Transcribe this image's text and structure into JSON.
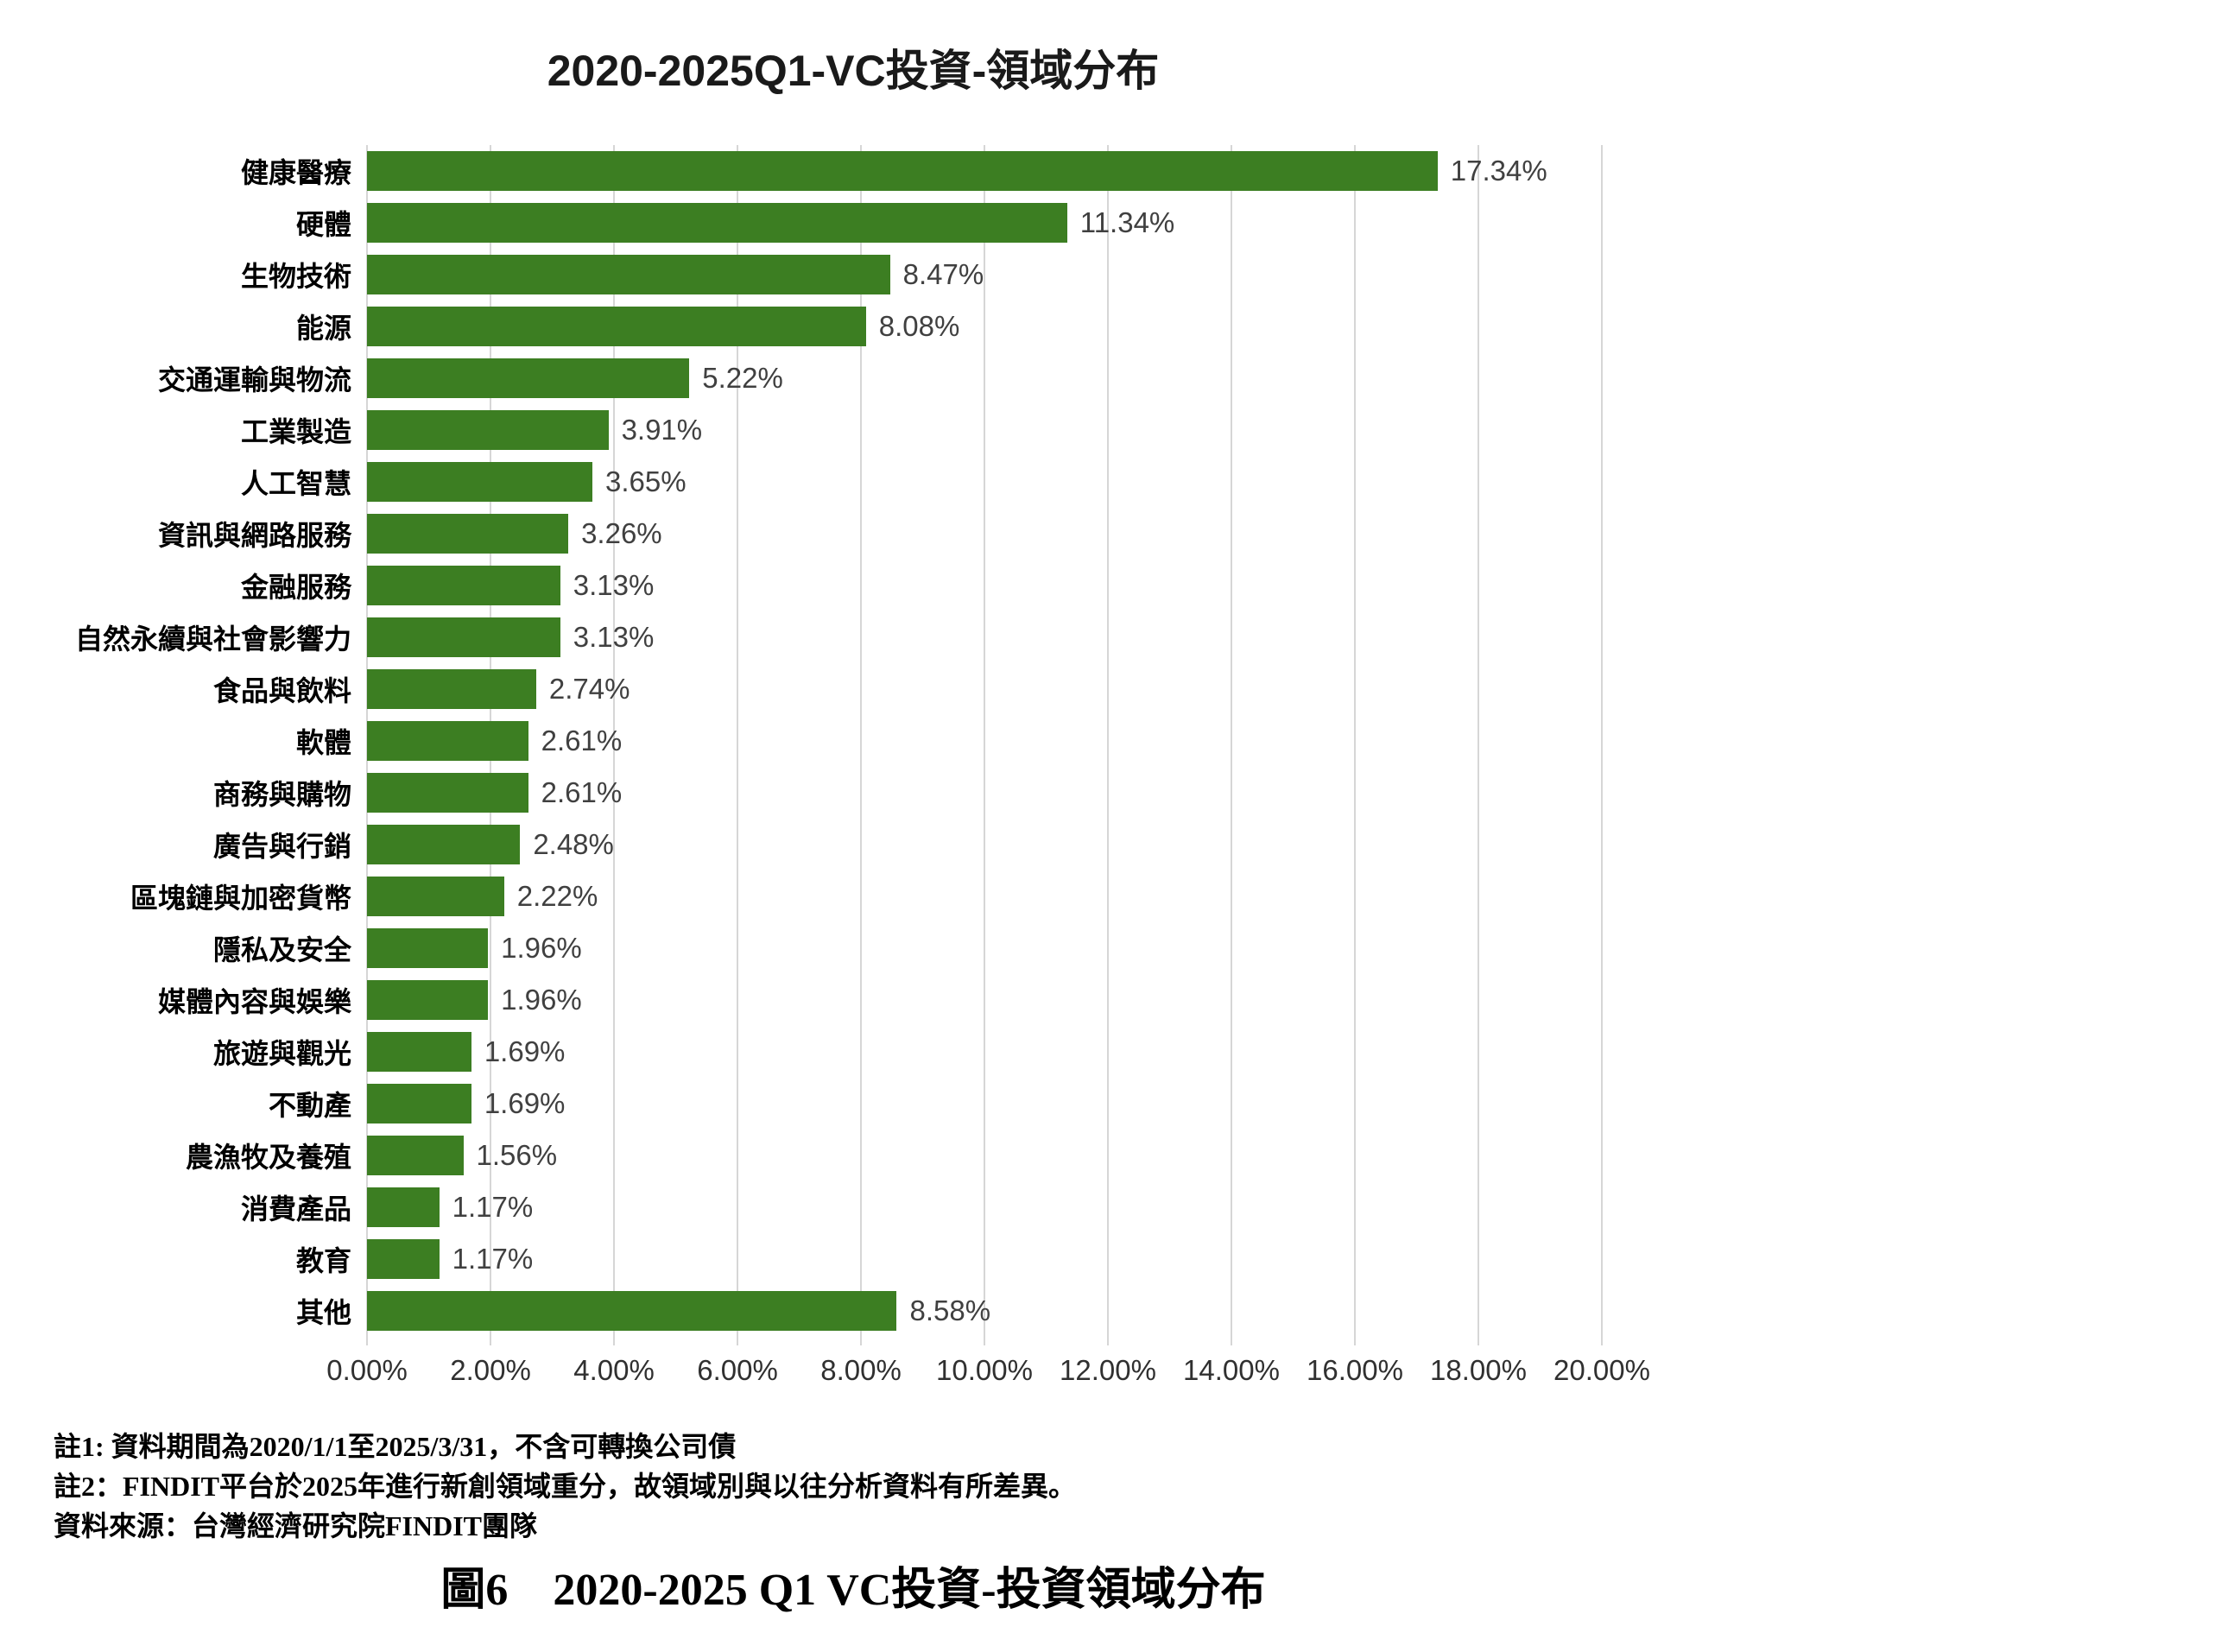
{
  "title": "2020-2025Q1-VC投資-領域分布",
  "chart_data": {
    "type": "bar",
    "orientation": "horizontal",
    "title": "2020-2025Q1-VC投資-領域分布",
    "categories": [
      "健康醫療",
      "硬體",
      "生物技術",
      "能源",
      "交通運輸與物流",
      "工業製造",
      "人工智慧",
      "資訊與網路服務",
      "金融服務",
      "自然永續與社會影響力",
      "食品與飲料",
      "軟體",
      "商務與購物",
      "廣告與行銷",
      "區塊鏈與加密貨幣",
      "隱私及安全",
      "媒體內容與娛樂",
      "旅遊與觀光",
      "不動產",
      "農漁牧及養殖",
      "消費產品",
      "教育",
      "其他"
    ],
    "values": [
      17.34,
      11.34,
      8.47,
      8.08,
      5.22,
      3.91,
      3.65,
      3.26,
      3.13,
      3.13,
      2.74,
      2.61,
      2.61,
      2.48,
      2.22,
      1.96,
      1.96,
      1.69,
      1.69,
      1.56,
      1.17,
      1.17,
      8.58
    ],
    "value_labels": [
      "17.34%",
      "11.34%",
      "8.47%",
      "8.08%",
      "5.22%",
      "3.91%",
      "3.65%",
      "3.26%",
      "3.13%",
      "3.13%",
      "2.74%",
      "2.61%",
      "2.61%",
      "2.48%",
      "2.22%",
      "1.96%",
      "1.96%",
      "1.69%",
      "1.69%",
      "1.56%",
      "1.17%",
      "1.17%",
      "8.58%"
    ],
    "x_axis": {
      "min": 0,
      "max": 20,
      "ticks": [
        "0.00%",
        "2.00%",
        "4.00%",
        "6.00%",
        "8.00%",
        "10.00%",
        "12.00%",
        "14.00%",
        "16.00%",
        "18.00%",
        "20.00%"
      ]
    },
    "grid": "vertical",
    "legend": "none",
    "bar_color": "#3C7E22",
    "gridline_color": "#D6D6D6",
    "value_label_color": "#404040"
  },
  "notes": [
    "註1: 資料期間為2020/1/1至2025/3/31，不含可轉換公司債",
    "註2：FINDIT平台於2025年進行新創領域重分，故領域別與以往分析資料有所差異。",
    "資料來源：台灣經濟研究院FINDIT團隊"
  ],
  "caption": "圖6　2020-2025 Q1  VC投資-投資領域分布"
}
